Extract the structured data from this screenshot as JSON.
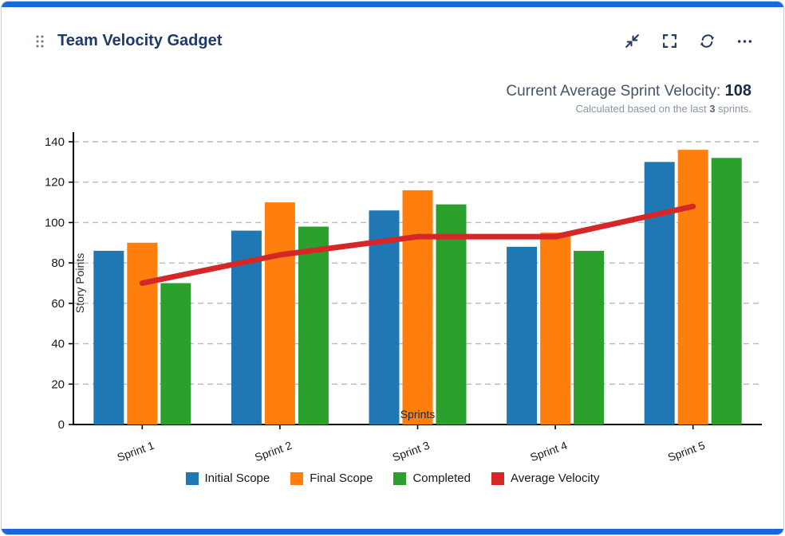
{
  "card": {
    "title": "Team Velocity Gadget",
    "accent_color": "#1868db",
    "header_icons": [
      {
        "name": "drag-handle-icon"
      },
      {
        "name": "collapse-icon"
      },
      {
        "name": "fullscreen-icon"
      },
      {
        "name": "refresh-icon"
      },
      {
        "name": "more-icon"
      }
    ]
  },
  "summary": {
    "label": "Current Average Sprint Velocity:",
    "value": "108",
    "note_prefix": "Calculated based on the last",
    "note_bold": "3",
    "note_suffix": "sprints."
  },
  "chart_data": {
    "type": "bar",
    "categories": [
      "Sprint 1",
      "Sprint 2",
      "Sprint 3",
      "Sprint 4",
      "Sprint 5"
    ],
    "series": [
      {
        "name": "Initial Scope",
        "type": "bar",
        "color": "#1f77b4",
        "values": [
          86,
          96,
          106,
          88,
          130
        ]
      },
      {
        "name": "Final Scope",
        "type": "bar",
        "color": "#ff7f0e",
        "values": [
          90,
          110,
          116,
          95,
          136
        ]
      },
      {
        "name": "Completed",
        "type": "bar",
        "color": "#2ca02c",
        "values": [
          70,
          98,
          109,
          86,
          132
        ]
      },
      {
        "name": "Average Velocity",
        "type": "line",
        "color": "#d62728",
        "values": [
          70,
          84,
          93,
          93,
          108
        ]
      }
    ],
    "xlabel": "Sprints",
    "ylabel": "Story Points",
    "ylim": [
      0,
      140
    ],
    "ytick_step": 20,
    "grid": true,
    "legend_position": "bottom"
  }
}
